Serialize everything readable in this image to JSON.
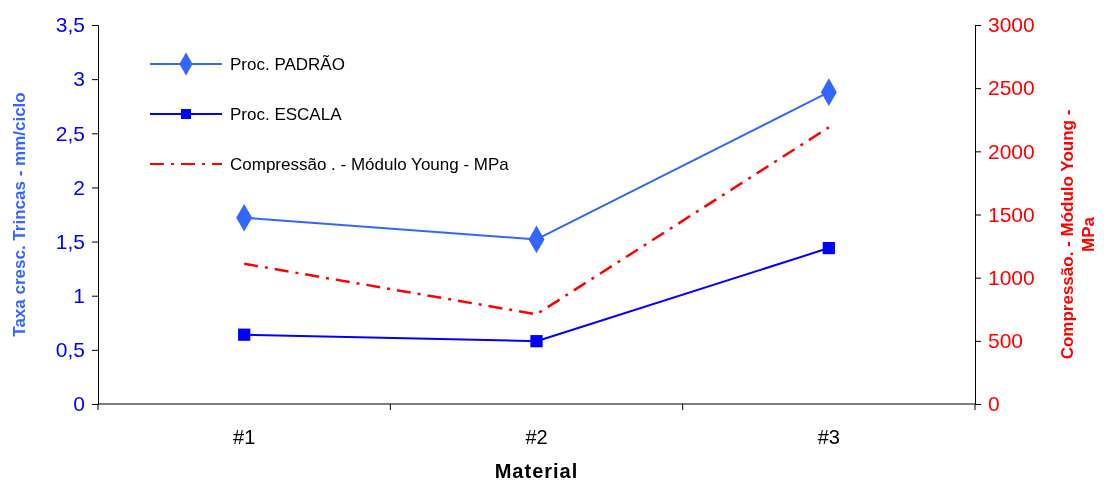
{
  "chart_data": {
    "type": "line",
    "xlabel": "Material",
    "ylabel": "Taxa cresc. Trincas - mm/ciclo",
    "y2label": "Compressão. - Módulo Young - MPa",
    "categories": [
      "#1",
      "#2",
      "#3"
    ],
    "series": [
      {
        "name": "Proc. PADRÃO",
        "color": "#3366ff",
        "marker": "diamond",
        "values": [
          1.72,
          1.52,
          2.88
        ]
      },
      {
        "name": "Proc. ESCALA",
        "color": "#0000ff",
        "marker": "square",
        "values": [
          0.64,
          0.58,
          1.44
        ]
      },
      {
        "name": "Compressão . - Módulo Young - MPa",
        "color": "#ff0000",
        "marker": "none",
        "line_style": "dashed",
        "axis": "y2",
        "values": [
          1110,
          710,
          2190
        ]
      }
    ],
    "ylim": [
      0,
      3.5
    ],
    "yticks": [
      0,
      {
        "value": 0.5,
        "label": "0,5"
      },
      1,
      {
        "value": 1.5,
        "label": "1,5"
      },
      2,
      {
        "value": 2.5,
        "label": "2,5"
      },
      3,
      {
        "value": 3.5,
        "label": "3,5"
      }
    ],
    "y2lim": [
      0,
      3000
    ],
    "y2ticks": [
      0,
      500,
      1000,
      1500,
      2000,
      2500,
      3000
    ],
    "legend": "top left",
    "grid": false
  }
}
